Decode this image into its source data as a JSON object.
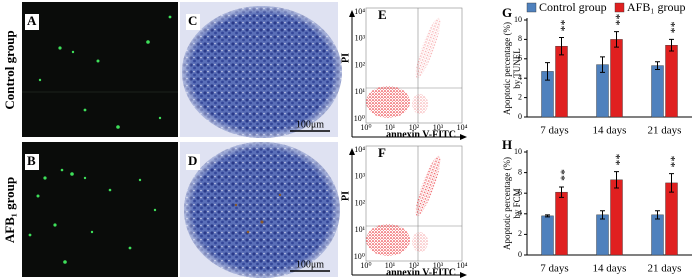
{
  "figure": {
    "row_labels": [
      "Control group",
      "AFB₁ group"
    ],
    "micro_panels": [
      {
        "label": "A"
      },
      {
        "label": "B"
      },
      {
        "label": "C",
        "scale": "100μm"
      },
      {
        "label": "D",
        "scale": "100μm"
      }
    ],
    "flow_panels": [
      {
        "label": "E",
        "x_label": "annexin V-FITC",
        "y_label": "PI",
        "x_ticks": [
          "10⁰",
          "10¹",
          "10²",
          "10³",
          "10⁴"
        ],
        "y_ticks": [
          "10⁰",
          "10¹",
          "10²",
          "10³",
          "10⁴"
        ]
      },
      {
        "label": "F",
        "x_label": "annexin V-FITC",
        "y_label": "PI",
        "x_ticks": [
          "10⁰",
          "10¹",
          "10²",
          "10³",
          "10⁴"
        ],
        "y_ticks": [
          "10⁰",
          "10¹",
          "10²",
          "10³",
          "10⁴"
        ]
      }
    ]
  },
  "chart_data": [
    {
      "type": "bar",
      "panel": "G",
      "ylabel": [
        "Apoptotic percentage (%)",
        "by TUNEL"
      ],
      "categories": [
        "7 days",
        "14 days",
        "21 days"
      ],
      "series": [
        {
          "name": "Control group",
          "color": "#4f81bd",
          "values": [
            4.7,
            5.4,
            5.3
          ],
          "errors": [
            0.9,
            0.8,
            0.4
          ]
        },
        {
          "name": "AFB₁ group",
          "color": "#e02020",
          "values": [
            7.3,
            8.0,
            7.4
          ],
          "errors": [
            0.9,
            0.8,
            0.6
          ]
        }
      ],
      "annotations": [
        "**",
        "**",
        "**"
      ],
      "ylim": [
        0,
        10
      ],
      "yticks": [
        0,
        2,
        4,
        6,
        8,
        10
      ],
      "legend": "top"
    },
    {
      "type": "bar",
      "panel": "H",
      "ylabel": [
        "Apoptotic percentage (%)",
        "by FCM"
      ],
      "categories": [
        "7 days",
        "14 days",
        "21 days"
      ],
      "series": [
        {
          "color": "#4f81bd",
          "values": [
            3.8,
            3.9,
            3.9
          ],
          "errors": [
            0.1,
            0.4,
            0.4
          ]
        },
        {
          "color": "#e02020",
          "values": [
            6.1,
            7.3,
            7.0
          ],
          "errors": [
            0.5,
            0.8,
            0.9
          ]
        }
      ],
      "annotations": [
        "**",
        "**",
        "**"
      ],
      "ylim": [
        0,
        10
      ],
      "yticks": [
        0,
        2,
        4,
        6,
        8,
        10
      ]
    }
  ]
}
